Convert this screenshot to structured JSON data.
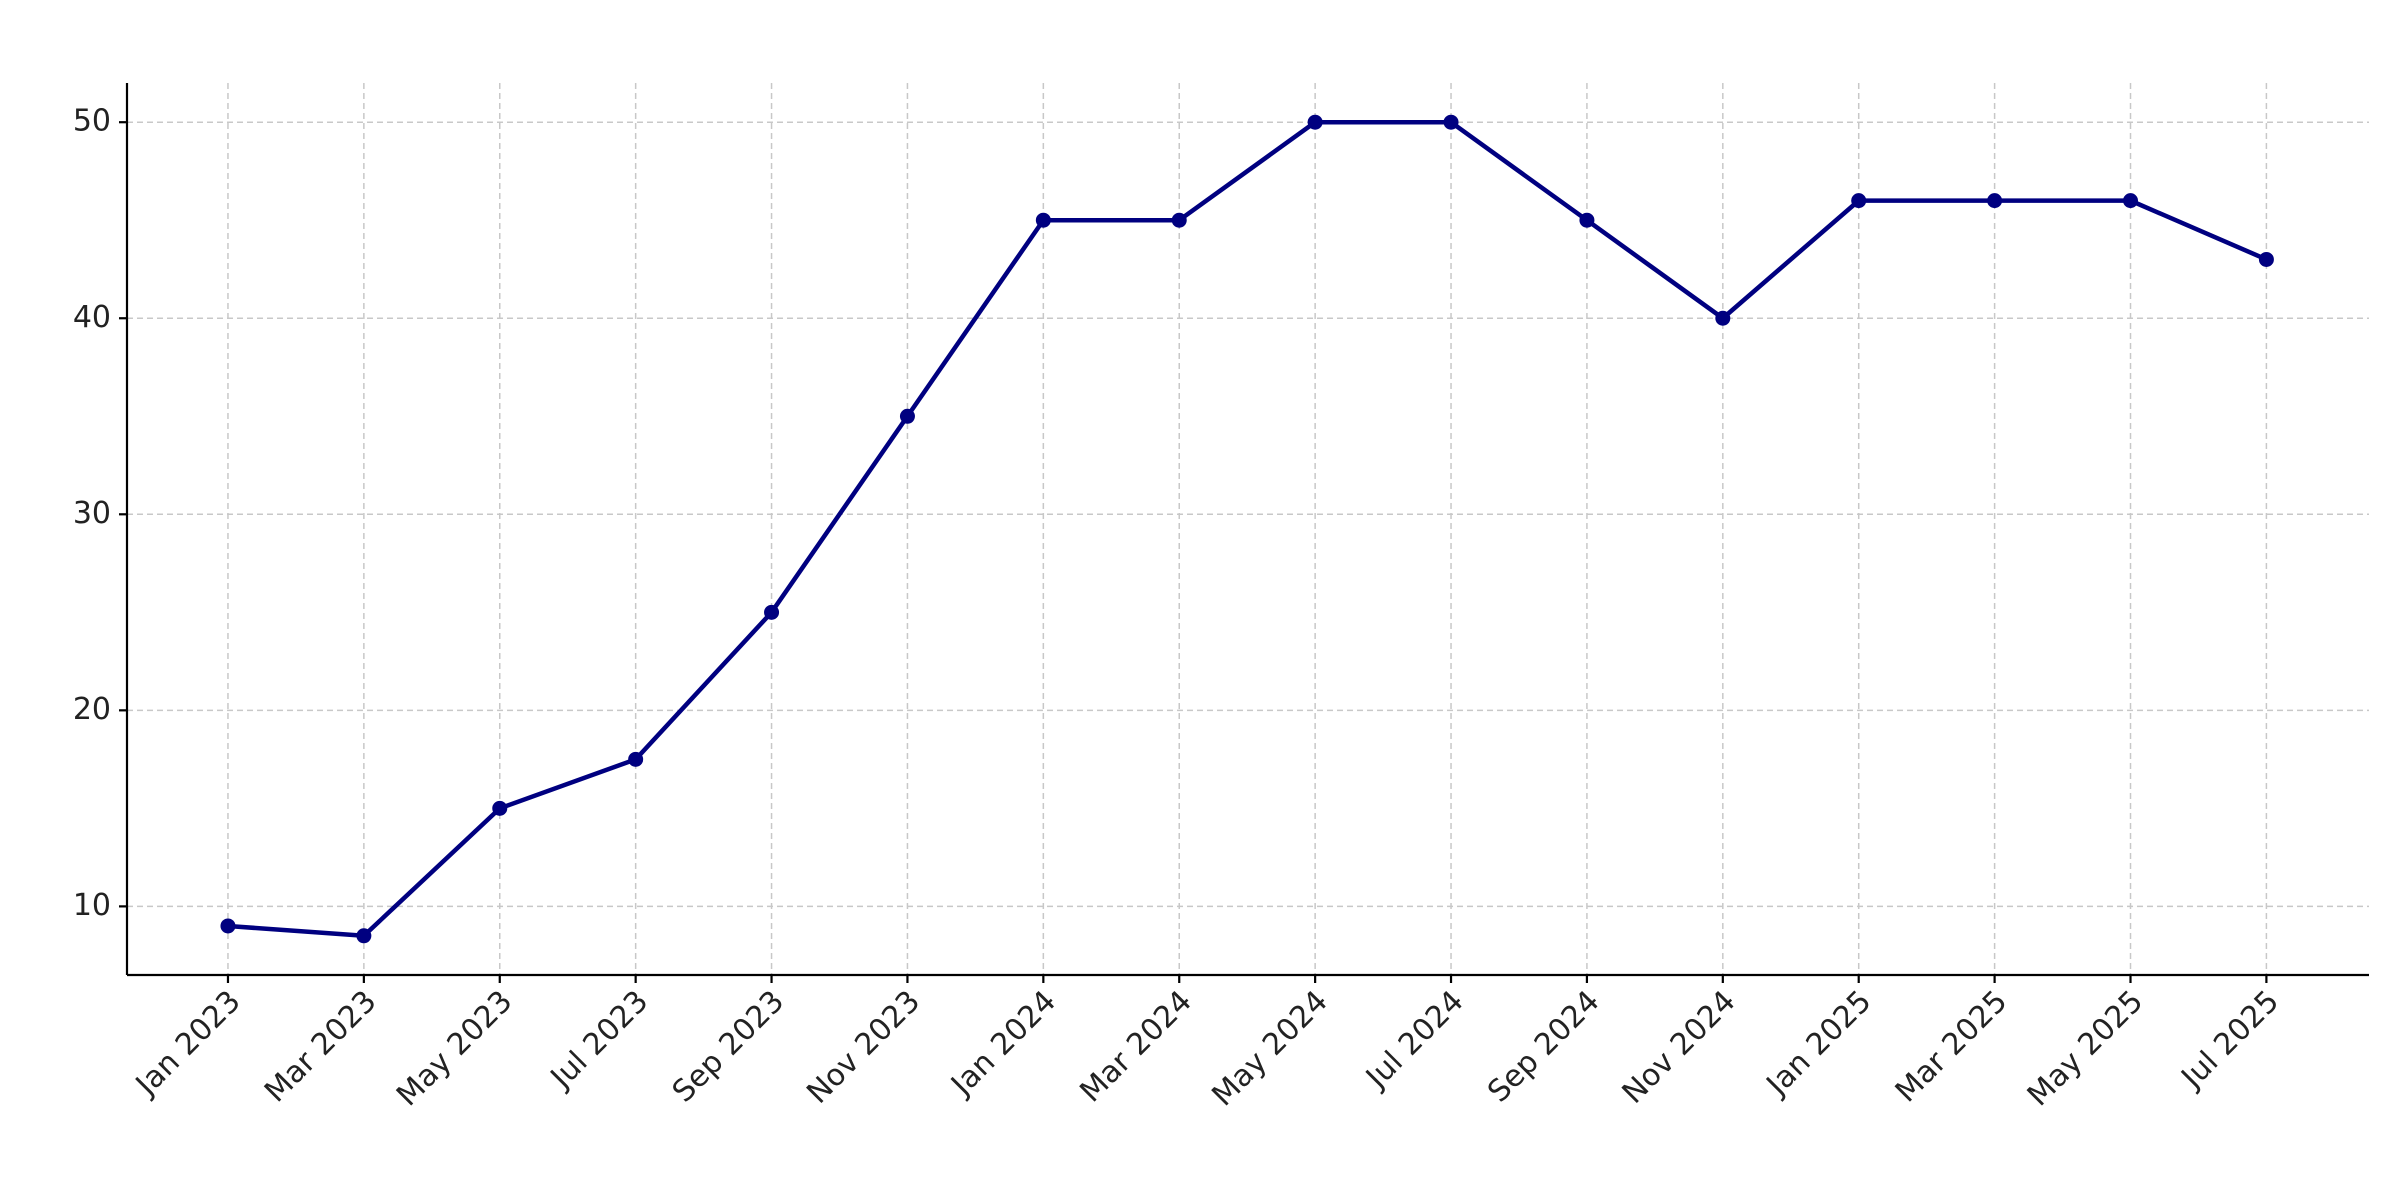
{
  "chart_data": {
    "type": "line",
    "categories": [
      "Jan 2023",
      "Mar 2023",
      "May 2023",
      "Jul 2023",
      "Sep 2023",
      "Nov 2023",
      "Jan 2024",
      "Mar 2024",
      "May 2024",
      "Jul 2024",
      "Sep 2024",
      "Nov 2024",
      "Jan 2025",
      "Mar 2025",
      "May 2025",
      "Jul 2025"
    ],
    "series": [
      {
        "color": "#000080",
        "values": [
          9,
          8.5,
          15,
          17.5,
          25,
          35,
          45,
          45,
          50,
          50,
          45,
          40,
          46,
          46,
          46,
          43
        ]
      }
    ],
    "ylim": [
      6.5,
      52
    ],
    "yticks": [
      10,
      20,
      30,
      40,
      50
    ],
    "grid": true
  }
}
